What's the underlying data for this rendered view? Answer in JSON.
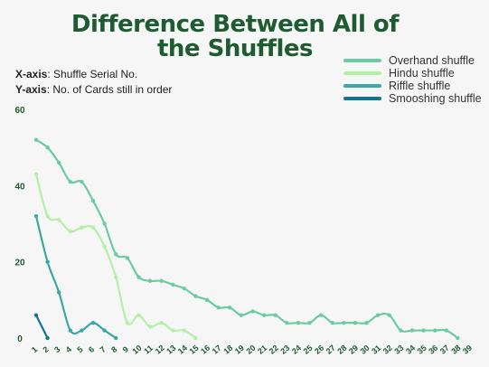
{
  "title": "Difference Between All of the Shuffles",
  "axis_notes": {
    "x_key": "X-axis",
    "x_text": ": Shuffle Serial No.",
    "y_key": "Y-axis",
    "y_text": ": No. of Cards still in order"
  },
  "colors": {
    "overhand": "#6ccba3",
    "hindu": "#b3efa6",
    "riffle": "#3aa8a4",
    "smooshing": "#13758f",
    "tick_text": "#1e5b30"
  },
  "chart_data": {
    "type": "line",
    "title": "Difference Between All of the Shuffles",
    "xlabel": "Shuffle Serial No.",
    "ylabel": "No. of Cards still in order",
    "x_ticks": [
      1,
      2,
      3,
      4,
      5,
      6,
      7,
      8,
      9,
      10,
      11,
      12,
      13,
      14,
      15,
      16,
      17,
      18,
      19,
      20,
      21,
      22,
      23,
      24,
      25,
      26,
      27,
      28,
      29,
      30,
      31,
      32,
      33,
      34,
      35,
      36,
      37,
      38,
      39
    ],
    "y_ticks": [
      0,
      20,
      40,
      60
    ],
    "ylim": [
      0,
      60
    ],
    "xlim": [
      1,
      39
    ],
    "grid": false,
    "legend": "top-right",
    "series": [
      {
        "name": "Overhand shuffle",
        "color_key": "overhand",
        "x": [
          1,
          2,
          3,
          4,
          5,
          6,
          7,
          8,
          9,
          10,
          11,
          12,
          13,
          14,
          15,
          16,
          17,
          18,
          19,
          20,
          21,
          22,
          23,
          24,
          25,
          26,
          27,
          28,
          29,
          30,
          31,
          32,
          33,
          34,
          35,
          36,
          37,
          38
        ],
        "values": [
          52,
          50,
          46,
          41,
          41,
          36,
          30,
          22,
          21,
          16,
          15,
          15,
          14,
          13,
          11,
          10,
          8,
          8,
          6,
          7,
          6,
          6,
          4,
          4,
          4,
          6,
          4,
          4,
          4,
          4,
          6,
          6,
          2,
          2,
          2,
          2,
          2,
          0
        ]
      },
      {
        "name": "Hindu shuffle",
        "color_key": "hindu",
        "x": [
          1,
          2,
          3,
          4,
          5,
          6,
          7,
          8,
          9,
          10,
          11,
          12,
          13,
          14,
          15
        ],
        "values": [
          43,
          32,
          31,
          28,
          29,
          29,
          24,
          16,
          4,
          6,
          3,
          4,
          2,
          2,
          0
        ]
      },
      {
        "name": "Riffle shuffle",
        "color_key": "riffle",
        "x": [
          1,
          2,
          3,
          4,
          5,
          6,
          7,
          8
        ],
        "values": [
          32,
          20,
          12,
          2,
          2,
          4,
          2,
          0
        ]
      },
      {
        "name": "Smooshing shuffle",
        "color_key": "smooshing",
        "x": [
          1,
          2
        ],
        "values": [
          6,
          0
        ]
      }
    ]
  }
}
